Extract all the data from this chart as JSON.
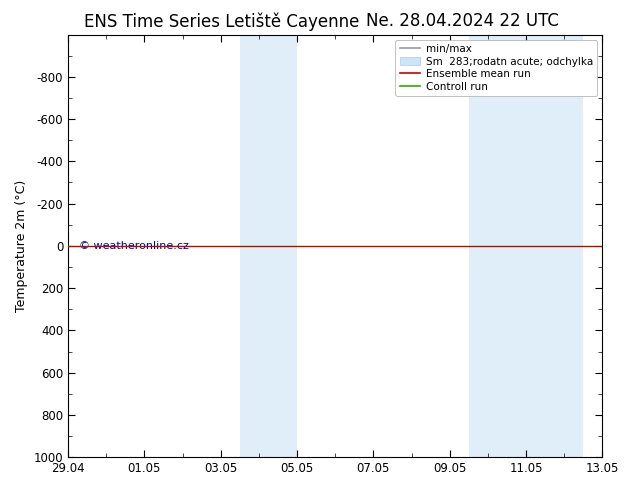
{
  "title_left": "ENS Time Series Letiště Cayenne",
  "title_right": "Ne. 28.04.2024 22 UTC",
  "ylabel": "Temperature 2m (°C)",
  "ylim_top": -1000,
  "ylim_bottom": 1000,
  "yticks": [
    -800,
    -600,
    -400,
    -200,
    0,
    200,
    400,
    600,
    800,
    1000
  ],
  "xlim_start": 0.0,
  "xlim_end": 14.0,
  "xtick_positions": [
    0,
    2,
    4,
    6,
    8,
    10,
    12,
    14
  ],
  "xtick_labels": [
    "29.04",
    "01.05",
    "03.05",
    "05.05",
    "07.05",
    "09.05",
    "11.05",
    "13.05"
  ],
  "blue_bands": [
    {
      "x_start": 4.5,
      "x_end": 6.0
    },
    {
      "x_start": 10.5,
      "x_end": 13.5
    }
  ],
  "green_line_y": 0,
  "red_line_y": 0,
  "legend_labels": [
    "min/max",
    "Sm  283;rodatn acute; odchylka",
    "Ensemble mean run",
    "Controll run"
  ],
  "copyright_text": "© weatheronline.cz",
  "copyright_color": "#0000bb",
  "background_color": "#ffffff",
  "plot_bg_color": "#ffffff",
  "border_color": "#000000",
  "title_fontsize": 12,
  "axis_fontsize": 9,
  "tick_fontsize": 8.5,
  "legend_fontsize": 7.5
}
